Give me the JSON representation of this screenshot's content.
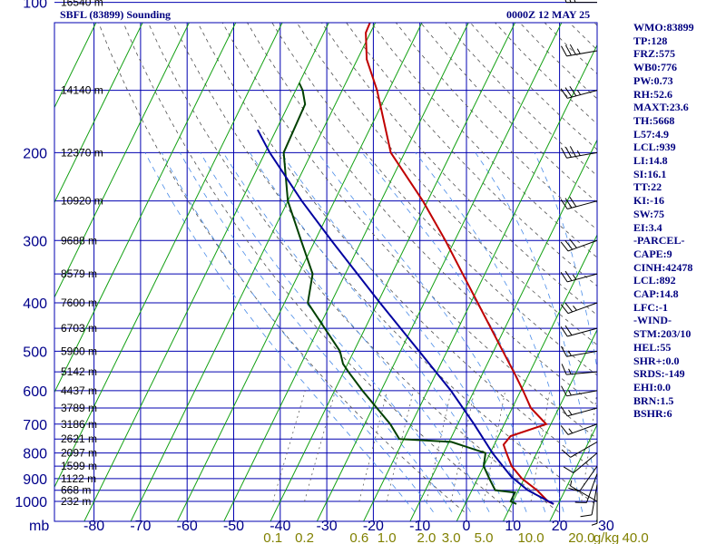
{
  "header": {
    "station": "SBFL (83899) Sounding",
    "datetime": "0000Z 12 MAY 25"
  },
  "indices": [
    "WMO:83899",
    "TP:128",
    "FRZ:575",
    "WB0:776",
    "PW:0.73",
    "RH:52.6",
    "MAXT:23.6",
    "TH:5668",
    "L57:4.9",
    "LCL:939",
    "LI:14.8",
    "SI:16.1",
    "TT:22",
    "KI:-16",
    "SW:75",
    "EI:3.4",
    "-PARCEL-",
    "CAPE:9",
    "CINH:42478",
    "LCL:892",
    "CAP:14.8",
    "LFC:-1",
    "-WIND-",
    "STM:203/10",
    "HEL:55",
    "SHR+:0.0",
    "SRDS:-149",
    "EHI:0.0",
    "BRN:1.5",
    "BSHR:6"
  ],
  "chart_data": {
    "type": "line",
    "title": "SBFL (83899) Sounding",
    "subtitle": "0000Z 12 MAY 25",
    "xlabel": "",
    "ylabel": "mb",
    "xlim": [
      -80,
      40
    ],
    "ylim": [
      1000,
      100
    ],
    "grid": true,
    "pressure_ticks": [
      {
        "p": 100,
        "label": "100"
      },
      {
        "p": 200,
        "label": "200"
      },
      {
        "p": 300,
        "label": "300"
      },
      {
        "p": 400,
        "label": "400"
      },
      {
        "p": 500,
        "label": "500"
      },
      {
        "p": 600,
        "label": "600"
      },
      {
        "p": 700,
        "label": "700"
      },
      {
        "p": 800,
        "label": "800"
      },
      {
        "p": 900,
        "label": "900"
      },
      {
        "p": 1000,
        "label": "1000"
      }
    ],
    "temperature_ticks": [
      {
        "t": -80,
        "label": "-80"
      },
      {
        "t": -70,
        "label": "-70"
      },
      {
        "t": -60,
        "label": "-60"
      },
      {
        "t": -50,
        "label": "-50"
      },
      {
        "t": -40,
        "label": "-40"
      },
      {
        "t": -30,
        "label": "-30"
      },
      {
        "t": -20,
        "label": "-20"
      },
      {
        "t": -10,
        "label": "-10"
      },
      {
        "t": 0,
        "label": "0"
      },
      {
        "t": 10,
        "label": "10"
      },
      {
        "t": 20,
        "label": "20"
      },
      {
        "t": 30,
        "label": "30"
      }
    ],
    "axis_unit": "mb",
    "height_labels": [
      {
        "p": 100,
        "label": "16540 m"
      },
      {
        "p": 150,
        "label": "14140 m"
      },
      {
        "p": 200,
        "label": "12370 m"
      },
      {
        "p": 250,
        "label": "10920 m"
      },
      {
        "p": 300,
        "label": "9688 m"
      },
      {
        "p": 350,
        "label": "8579 m"
      },
      {
        "p": 400,
        "label": "7600 m"
      },
      {
        "p": 450,
        "label": "6703 m"
      },
      {
        "p": 500,
        "label": "5900 m"
      },
      {
        "p": 550,
        "label": "5142 m"
      },
      {
        "p": 600,
        "label": "4437 m"
      },
      {
        "p": 650,
        "label": "3789 m"
      },
      {
        "p": 700,
        "label": "3186 m"
      },
      {
        "p": 750,
        "label": "2621 m"
      },
      {
        "p": 800,
        "label": "2097 m"
      },
      {
        "p": 850,
        "label": "1599 m"
      },
      {
        "p": 900,
        "label": "1122 m"
      },
      {
        "p": 950,
        "label": "668 m"
      },
      {
        "p": 1000,
        "label": "232 m"
      }
    ],
    "mixing_ratio_labels": [
      {
        "w": 0.1,
        "label": "0.1"
      },
      {
        "w": 0.2,
        "label": "0.2"
      },
      {
        "w": 0.6,
        "label": "0.6"
      },
      {
        "w": 1.0,
        "label": "1.0"
      },
      {
        "w": 2.0,
        "label": "2.0"
      },
      {
        "w": 3.0,
        "label": "3.0"
      },
      {
        "w": 5.0,
        "label": "5.0"
      },
      {
        "w": 10.0,
        "label": "10.0"
      },
      {
        "w": 20.0,
        "label": "20.0"
      },
      {
        "w": 40.0,
        "label": "40.0"
      }
    ],
    "mixing_ratio_unit": "g/kg",
    "series": [
      {
        "type": "temperature",
        "color": "#c00000",
        "points": [
          {
            "p": 1012,
            "t": 19.0
          },
          {
            "p": 1000,
            "t": 17.5
          },
          {
            "p": 950,
            "t": 14.0
          },
          {
            "p": 900,
            "t": 9.5
          },
          {
            "p": 850,
            "t": 6.0
          },
          {
            "p": 800,
            "t": 3.5
          },
          {
            "p": 770,
            "t": 2.0
          },
          {
            "p": 740,
            "t": 2.6
          },
          {
            "p": 700,
            "t": 9.0
          },
          {
            "p": 650,
            "t": 4.0
          },
          {
            "p": 600,
            "t": 0.5
          },
          {
            "p": 550,
            "t": -3.5
          },
          {
            "p": 500,
            "t": -8.0
          },
          {
            "p": 400,
            "t": -18.5
          },
          {
            "p": 300,
            "t": -32.0
          },
          {
            "p": 250,
            "t": -41.0
          },
          {
            "p": 200,
            "t": -53.0
          },
          {
            "p": 150,
            "t": -62.5
          },
          {
            "p": 130,
            "t": -68.0
          },
          {
            "p": 115,
            "t": -71.0
          },
          {
            "p": 100,
            "t": -71.5
          }
        ]
      },
      {
        "type": "dewpoint",
        "color": "#004000",
        "points": [
          {
            "p": 1012,
            "t": 11.0
          },
          {
            "p": 1000,
            "t": 9.5
          },
          {
            "p": 960,
            "t": 9.5
          },
          {
            "p": 950,
            "t": 5.0
          },
          {
            "p": 900,
            "t": 2.5
          },
          {
            "p": 850,
            "t": 0.0
          },
          {
            "p": 800,
            "t": -1.0
          },
          {
            "p": 760,
            "t": -9.5
          },
          {
            "p": 750,
            "t": -21.0
          },
          {
            "p": 700,
            "t": -24.5
          },
          {
            "p": 600,
            "t": -34.0
          },
          {
            "p": 550,
            "t": -39.0
          },
          {
            "p": 530,
            "t": -41.0
          },
          {
            "p": 500,
            "t": -43.0
          },
          {
            "p": 400,
            "t": -55.0
          },
          {
            "p": 350,
            "t": -57.0
          },
          {
            "p": 300,
            "t": -63.0
          },
          {
            "p": 250,
            "t": -70.0
          },
          {
            "p": 200,
            "t": -76.0
          },
          {
            "p": 160,
            "t": -76.5
          },
          {
            "p": 150,
            "t": -78.5
          },
          {
            "p": 145,
            "t": -80.0
          }
        ]
      },
      {
        "type": "parcel",
        "color": "#0000a0",
        "points": [
          {
            "p": 1012,
            "t": 19.0
          },
          {
            "p": 950,
            "t": 12.0
          },
          {
            "p": 892,
            "t": 7.0
          },
          {
            "p": 800,
            "t": 0.5
          },
          {
            "p": 700,
            "t": -6.5
          },
          {
            "p": 600,
            "t": -15.0
          },
          {
            "p": 500,
            "t": -26.0
          },
          {
            "p": 400,
            "t": -39.5
          },
          {
            "p": 300,
            "t": -56.5
          },
          {
            "p": 250,
            "t": -67.0
          },
          {
            "p": 200,
            "t": -79.0
          },
          {
            "p": 180,
            "t": -84.0
          }
        ]
      }
    ],
    "wind_barbs": [
      {
        "p": 1000,
        "dir": 300,
        "spd": 5
      },
      {
        "p": 960,
        "dir": 180,
        "spd": 5
      },
      {
        "p": 925,
        "dir": 190,
        "spd": 10
      },
      {
        "p": 880,
        "dir": 200,
        "spd": 10
      },
      {
        "p": 850,
        "dir": 215,
        "spd": 10
      },
      {
        "p": 800,
        "dir": 230,
        "spd": 10
      },
      {
        "p": 760,
        "dir": 240,
        "spd": 10
      },
      {
        "p": 700,
        "dir": 250,
        "spd": 15
      },
      {
        "p": 650,
        "dir": 255,
        "spd": 15
      },
      {
        "p": 600,
        "dir": 260,
        "spd": 15
      },
      {
        "p": 550,
        "dir": 265,
        "spd": 15
      },
      {
        "p": 500,
        "dir": 260,
        "spd": 15
      },
      {
        "p": 450,
        "dir": 255,
        "spd": 20
      },
      {
        "p": 400,
        "dir": 250,
        "spd": 25
      },
      {
        "p": 350,
        "dir": 255,
        "spd": 25
      },
      {
        "p": 300,
        "dir": 250,
        "spd": 30
      },
      {
        "p": 250,
        "dir": 255,
        "spd": 30
      },
      {
        "p": 200,
        "dir": 260,
        "spd": 35
      },
      {
        "p": 150,
        "dir": 255,
        "spd": 35
      },
      {
        "p": 125,
        "dir": 260,
        "spd": 35
      },
      {
        "p": 100,
        "dir": 270,
        "spd": 30
      }
    ]
  }
}
